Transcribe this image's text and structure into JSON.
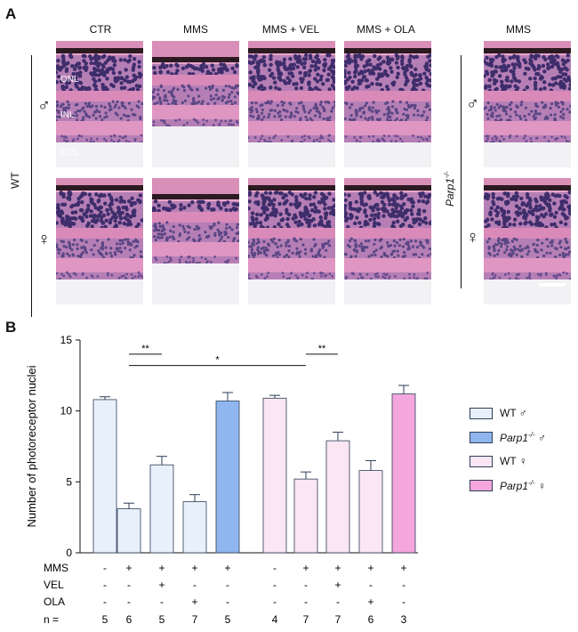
{
  "panel_a": {
    "letter": "A",
    "columns": [
      "CTR",
      "MMS",
      "MMS + VEL",
      "MMS + OLA"
    ],
    "right_column": "MMS",
    "group_left": "WT",
    "group_right": "Parp1",
    "group_right_sup": "-/-",
    "male_symbol": "♂",
    "female_symbol": "♀",
    "layers": [
      "ONL",
      "INL",
      "GCL"
    ]
  },
  "panel_b": {
    "letter": "B",
    "row_labels": [
      "MMS",
      "VEL",
      "OLA",
      "n ="
    ],
    "treatments": {
      "MMS": [
        "-",
        "+",
        "+",
        "+",
        "+",
        "-",
        "+",
        "+",
        "+",
        "+"
      ],
      "VEL": [
        "-",
        "-",
        "+",
        "-",
        "-",
        "-",
        "-",
        "+",
        "-",
        "-"
      ],
      "OLA": [
        "-",
        "-",
        "-",
        "+",
        "-",
        "-",
        "-",
        "-",
        "+",
        "-"
      ],
      "n": [
        "5",
        "6",
        "5",
        "7",
        "5",
        "4",
        "7",
        "7",
        "6",
        "3"
      ]
    },
    "legend": [
      {
        "name": "WT",
        "suffix": "♂",
        "sup": "",
        "italic": false,
        "color": "#e8f0fb"
      },
      {
        "name": "Parp1",
        "suffix": "♂",
        "sup": "-/-",
        "italic": true,
        "color": "#8fb6ef"
      },
      {
        "name": "WT",
        "suffix": "♀",
        "sup": "",
        "italic": false,
        "color": "#fbe6f3"
      },
      {
        "name": "Parp1",
        "suffix": "♀",
        "sup": "-/-",
        "italic": true,
        "color": "#f4a6dd"
      }
    ]
  },
  "chart_data": {
    "type": "bar",
    "ylabel": "Number of photoreceptor nuclei",
    "ylim": [
      0,
      15
    ],
    "yticks": [
      0,
      5,
      10,
      15
    ],
    "values": [
      10.8,
      3.1,
      6.2,
      3.6,
      10.7,
      10.9,
      5.2,
      7.9,
      5.8,
      11.2
    ],
    "errors": [
      0.2,
      0.4,
      0.6,
      0.5,
      0.6,
      0.2,
      0.5,
      0.6,
      0.7,
      0.6
    ],
    "bar_groups": [
      0,
      0,
      0,
      0,
      1,
      2,
      2,
      2,
      2,
      3
    ],
    "significance": [
      {
        "from": 1,
        "to": 2,
        "y": 14.0,
        "label": "**"
      },
      {
        "from": 1,
        "to": 6,
        "y": 13.2,
        "label": "*"
      },
      {
        "from": 6,
        "to": 7,
        "y": 14.0,
        "label": "**"
      }
    ],
    "legend_position": "right"
  }
}
